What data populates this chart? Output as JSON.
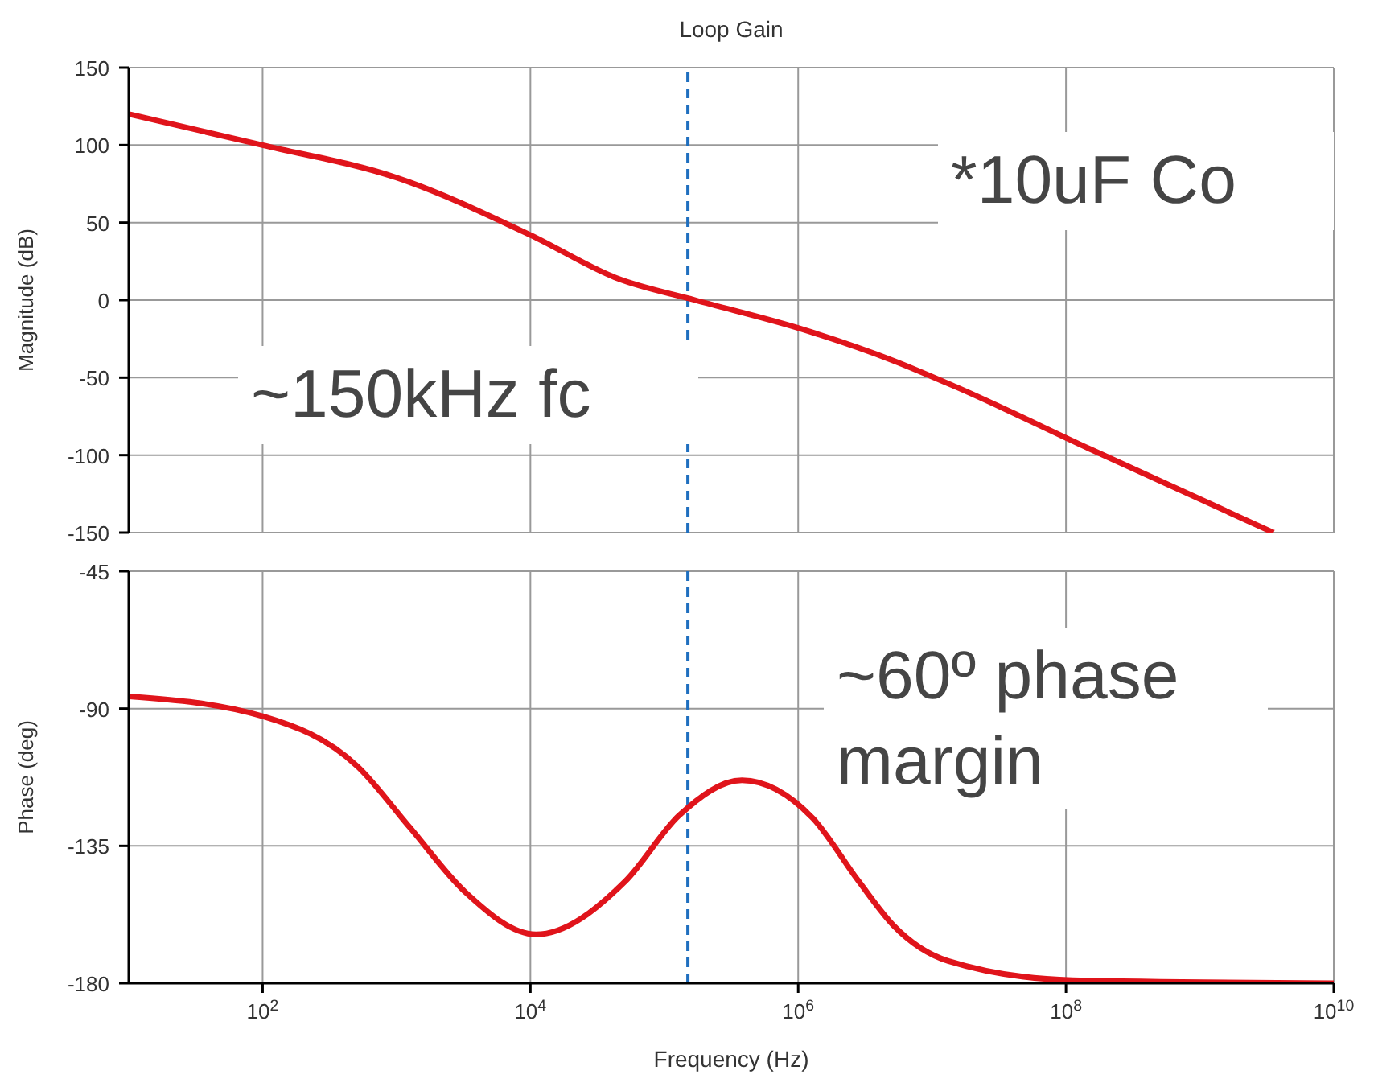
{
  "chart_data": [
    {
      "type": "line",
      "title": "Loop Gain",
      "ylabel": "Magnitude (dB)",
      "x": [
        10,
        100,
        1000,
        10000,
        44700,
        170000,
        1000000,
        5130000,
        15100000,
        151000000,
        3550000000
      ],
      "series": [
        {
          "color": "#e0141b",
          "values": [
            120,
            100,
            79,
            42,
            14,
            0,
            -18,
            -39,
            -56,
            -96,
            -150
          ]
        }
      ],
      "xlim": [
        10,
        10000000000
      ],
      "xticks": [
        {
          "value": 100,
          "label": null
        },
        {
          "value": 10000,
          "label": null
        },
        {
          "value": 1000000,
          "label": null
        },
        {
          "value": 100000000,
          "label": null
        },
        {
          "value": 10000000000,
          "label": null
        }
      ],
      "ylim": [
        -150,
        150
      ],
      "yticks": [
        -150,
        -100,
        -50,
        0,
        50,
        100,
        150
      ],
      "log": "x",
      "grid": true,
      "tick_labels": "y",
      "ref_lines": [
        {
          "axis": "x",
          "value": 150000,
          "color": "#1f6fbf",
          "line_style": "dashed"
        }
      ],
      "annotations": [
        "*10uF Co",
        "~150kHz fc"
      ]
    },
    {
      "type": "line",
      "xlabel": "Frequency (Hz)",
      "ylabel": "Phase (deg)",
      "x": [
        10,
        100,
        513,
        1260,
        3240,
        11000,
        51300,
        129000,
        380000,
        1290000,
        2820000,
        5130000,
        13200000,
        112000000,
        10000000000
      ],
      "series": [
        {
          "color": "#e0141b",
          "values": [
            -86,
            -92.5,
            -109,
            -129,
            -150,
            -164,
            -146.5,
            -125,
            -113.5,
            -126,
            -146.5,
            -161,
            -172.7,
            -179,
            -180
          ]
        }
      ],
      "xlim": [
        10,
        10000000000
      ],
      "xticks": [
        {
          "value": 100,
          "label": "10$^{2}$"
        },
        {
          "value": 10000,
          "label": "10$^{4}$"
        },
        {
          "value": 1000000,
          "label": "10$^{6}$"
        },
        {
          "value": 100000000,
          "label": "10$^{8}$"
        },
        {
          "value": 10000000000,
          "label": "10$^{10}$"
        }
      ],
      "ylim": [
        -180,
        -45
      ],
      "yticks": [
        -180,
        -135,
        -90,
        -45
      ],
      "log": "x",
      "grid": true,
      "ref_lines": [
        {
          "axis": "x",
          "value": 150000,
          "color": "#1f6fbf",
          "line_style": "dashed"
        }
      ],
      "annotations": [
        "~60º phase margin"
      ]
    }
  ]
}
